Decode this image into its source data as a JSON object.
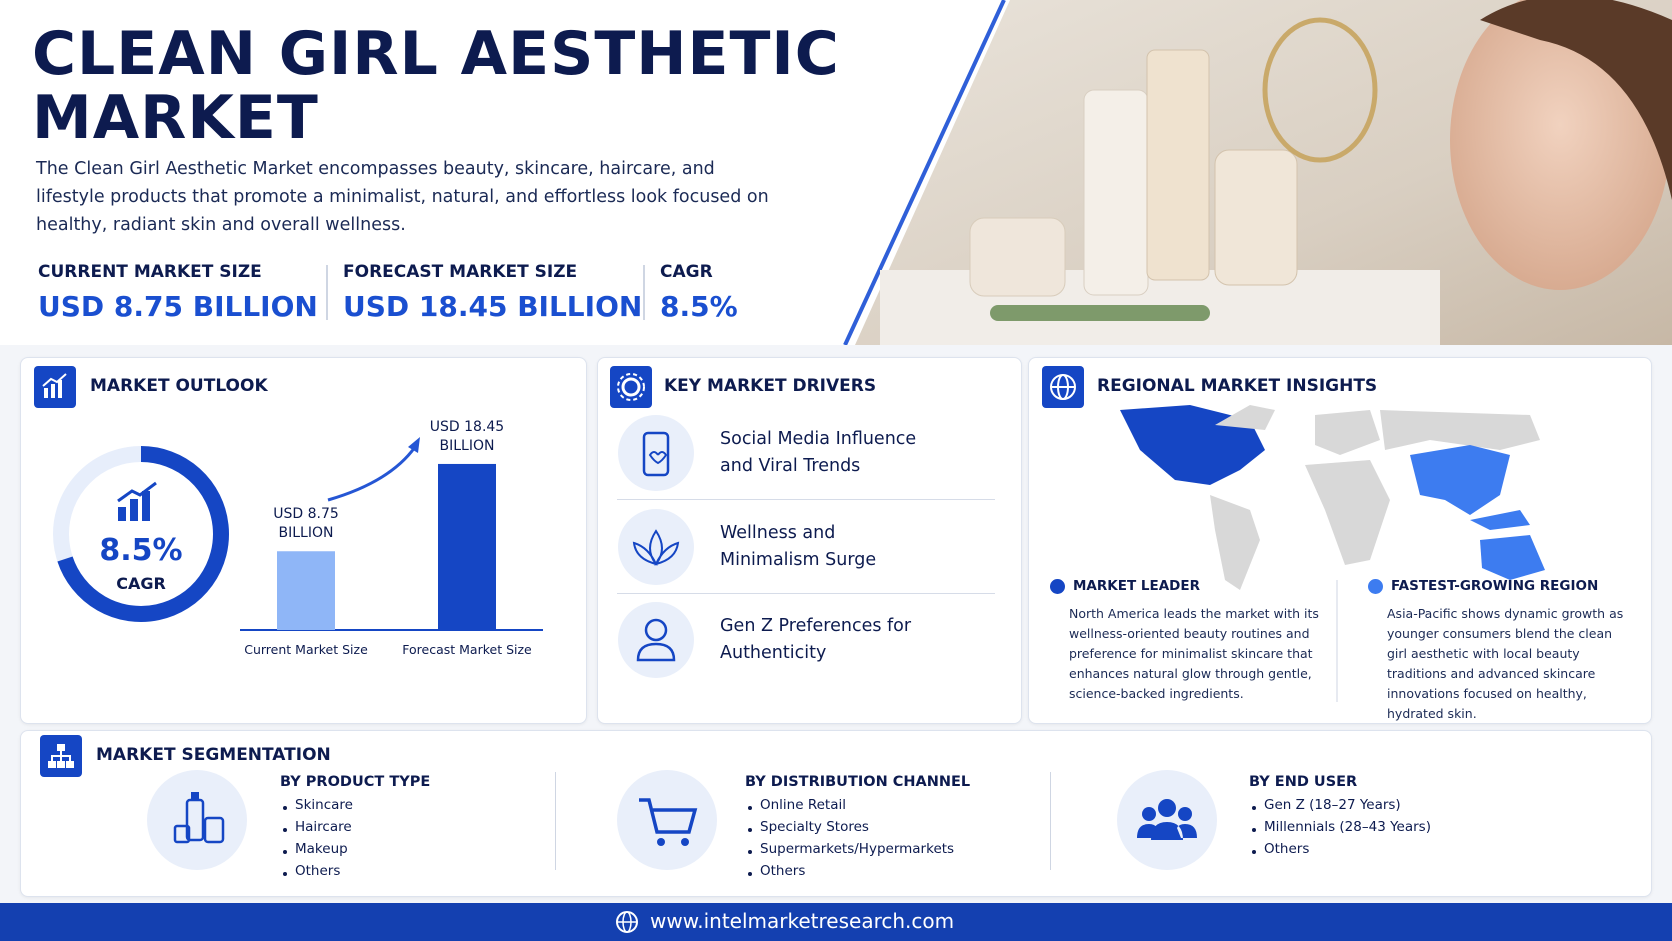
{
  "header": {
    "title_line1": "CLEAN GIRL AESTHETIC",
    "title_line2": "MARKET",
    "description": "The Clean Girl Aesthetic Market encompasses beauty, skincare, haircare, and lifestyle products that promote a minimalist, natural, and effortless look focused on healthy, radiant skin and overall wellness.",
    "stats": [
      {
        "label": "CURRENT MARKET SIZE",
        "value": "USD 8.75 BILLION"
      },
      {
        "label": "FORECAST MARKET SIZE",
        "value": "USD 18.45 BILLION"
      },
      {
        "label": "CAGR",
        "value": "8.5%"
      }
    ]
  },
  "outlook": {
    "title": "MARKET OUTLOOK",
    "cagr_value": "8.5%",
    "cagr_label": "CAGR",
    "bars": [
      {
        "category": "Current Market Size",
        "value_label": "USD 8.75 BILLION",
        "value": 8.75
      },
      {
        "category": "Forecast Market Size",
        "value_label": "USD 18.45 BILLION",
        "value": 18.45
      }
    ]
  },
  "drivers": {
    "title": "KEY MARKET DRIVERS",
    "items": [
      "Social Media Influence and Viral Trends",
      "Wellness and Minimalism Surge",
      "Gen Z Preferences for Authenticity"
    ]
  },
  "regional": {
    "title": "REGIONAL MARKET INSIGHTS",
    "insights": [
      {
        "heading": "MARKET LEADER",
        "text": "North America leads the market with its wellness-oriented beauty routines and preference for minimalist skincare that enhances natural glow through gentle, science-backed ingredients."
      },
      {
        "heading": "FASTEST-GROWING REGION",
        "text": "Asia-Pacific shows dynamic growth as younger consumers blend the clean girl aesthetic with local beauty traditions and advanced skincare innovations focused on healthy, hydrated skin."
      }
    ]
  },
  "segmentation": {
    "title": "MARKET SEGMENTATION",
    "groups": [
      {
        "heading": "BY PRODUCT TYPE",
        "items": [
          "Skincare",
          "Haircare",
          "Makeup",
          "Others"
        ]
      },
      {
        "heading": "BY DISTRIBUTION CHANNEL",
        "items": [
          "Online Retail",
          "Specialty Stores",
          "Supermarkets/Hypermarkets",
          "Others"
        ]
      },
      {
        "heading": "BY END USER",
        "items": [
          "Gen Z (18–27 Years)",
          "Millennials (28–43 Years)",
          "Others"
        ]
      }
    ]
  },
  "footer": {
    "url": "www.intelmarketresearch.com"
  }
}
